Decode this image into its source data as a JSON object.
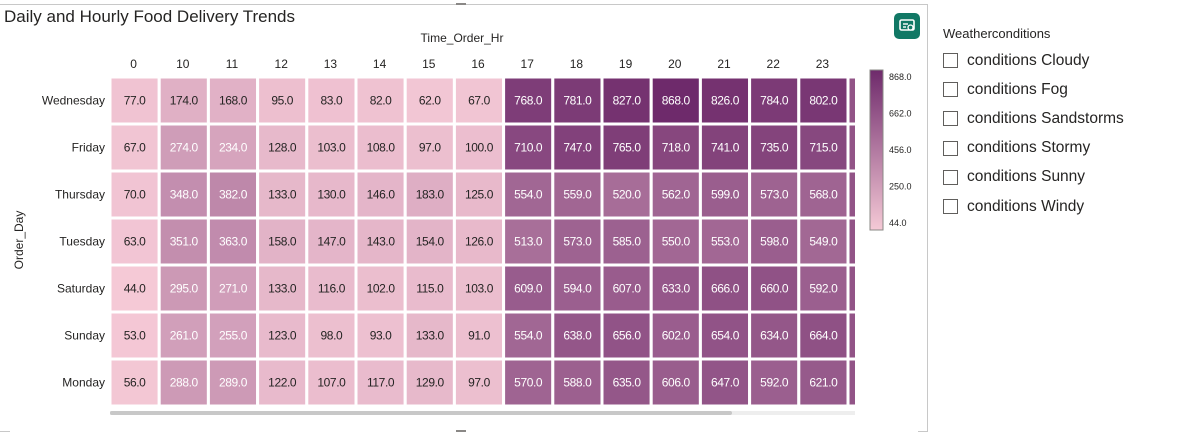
{
  "visual": {
    "title": "Daily and Hourly Food Delivery Trends"
  },
  "chart_data": {
    "type": "heatmap",
    "title": "Daily and Hourly Food Delivery Trends",
    "xlabel": "Time_Order_Hr",
    "ylabel": "Order_Day",
    "x": [
      "0",
      "10",
      "11",
      "12",
      "13",
      "14",
      "15",
      "16",
      "17",
      "18",
      "19",
      "20",
      "21",
      "22",
      "23"
    ],
    "y": [
      "Wednesday",
      "Friday",
      "Thursday",
      "Tuesday",
      "Saturday",
      "Sunday",
      "Monday"
    ],
    "values": [
      [
        77.0,
        174.0,
        168.0,
        95.0,
        83.0,
        82.0,
        62.0,
        67.0,
        768.0,
        781.0,
        827.0,
        868.0,
        826.0,
        784.0,
        802.0
      ],
      [
        67.0,
        274.0,
        234.0,
        128.0,
        103.0,
        108.0,
        97.0,
        100.0,
        710.0,
        747.0,
        765.0,
        718.0,
        741.0,
        735.0,
        715.0
      ],
      [
        70.0,
        348.0,
        382.0,
        133.0,
        130.0,
        146.0,
        183.0,
        125.0,
        554.0,
        559.0,
        520.0,
        562.0,
        599.0,
        573.0,
        568.0
      ],
      [
        63.0,
        351.0,
        363.0,
        158.0,
        147.0,
        143.0,
        154.0,
        126.0,
        513.0,
        573.0,
        585.0,
        550.0,
        553.0,
        598.0,
        549.0
      ],
      [
        44.0,
        295.0,
        271.0,
        133.0,
        116.0,
        102.0,
        115.0,
        103.0,
        609.0,
        594.0,
        607.0,
        633.0,
        666.0,
        660.0,
        592.0
      ],
      [
        53.0,
        261.0,
        255.0,
        123.0,
        98.0,
        93.0,
        133.0,
        91.0,
        554.0,
        638.0,
        656.0,
        602.0,
        654.0,
        634.0,
        664.0
      ],
      [
        56.0,
        288.0,
        289.0,
        122.0,
        107.0,
        117.0,
        129.0,
        97.0,
        570.0,
        588.0,
        635.0,
        606.0,
        647.0,
        592.0,
        621.0
      ]
    ],
    "color_scale": {
      "min": 44.0,
      "max": 868.0,
      "min_color": "#f5c9d6",
      "max_color": "#6e2a6b",
      "ticks": [
        "868.0",
        "662.0",
        "456.0",
        "250.0",
        "44.0"
      ]
    },
    "cell_border_color": "#ffffff"
  },
  "slicer": {
    "title": "Weatherconditions",
    "items": [
      {
        "label": "conditions Cloudy",
        "checked": false
      },
      {
        "label": "conditions Fog",
        "checked": false
      },
      {
        "label": "conditions Sandstorms",
        "checked": false
      },
      {
        "label": "conditions Stormy",
        "checked": false
      },
      {
        "label": "conditions Sunny",
        "checked": false
      },
      {
        "label": "conditions Windy",
        "checked": false
      }
    ]
  },
  "icons": {
    "focus_mode": "focus-mode-icon"
  },
  "colors": {
    "focus_button": "#117865",
    "scrollbar": "#c8c8c8"
  }
}
